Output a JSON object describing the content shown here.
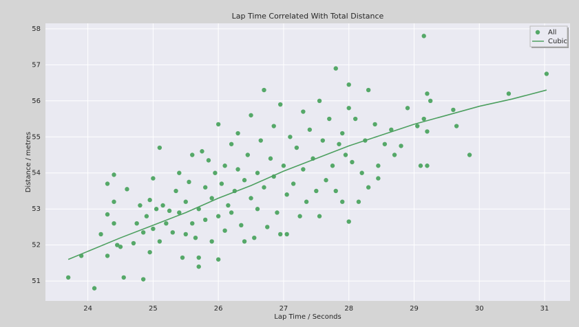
{
  "chart_data": {
    "type": "scatter",
    "title": "Lap Time Correlated With Total Distance",
    "x_label": "Lap Time / Seconds",
    "y_label": "Distance / metres",
    "xlim": [
      23.35,
      31.39
    ],
    "ylim": [
      50.45,
      58.15
    ],
    "xticks": [
      24,
      25,
      26,
      27,
      28,
      29,
      30,
      31
    ],
    "yticks": [
      51,
      52,
      53,
      54,
      55,
      56,
      57,
      58
    ],
    "grid": true,
    "legend": "upper right",
    "series": [
      {
        "name": "All",
        "color": "#55a868",
        "mode": "markers",
        "x": [
          23.7,
          23.9,
          24.1,
          24.3,
          24.55,
          24.85,
          24.2,
          24.3,
          24.4,
          24.45,
          24.5,
          24.4,
          24.3,
          24.4,
          24.6,
          24.7,
          24.75,
          24.8,
          24.85,
          24.9,
          24.95,
          24.95,
          25.0,
          25.05,
          25.0,
          25.1,
          25.1,
          25.15,
          25.2,
          25.25,
          25.3,
          25.35,
          25.4,
          25.4,
          25.45,
          25.5,
          25.5,
          25.55,
          25.6,
          25.6,
          25.65,
          25.7,
          25.7,
          25.7,
          25.75,
          25.8,
          25.8,
          25.85,
          25.9,
          25.9,
          25.95,
          26.0,
          26.0,
          26.0,
          26.05,
          26.1,
          26.1,
          26.15,
          26.2,
          26.2,
          26.25,
          26.3,
          26.3,
          26.35,
          26.4,
          26.4,
          26.45,
          26.5,
          26.5,
          26.55,
          26.6,
          26.6,
          26.65,
          26.7,
          26.7,
          26.75,
          26.8,
          26.85,
          26.85,
          26.9,
          26.95,
          26.95,
          27.0,
          27.05,
          27.05,
          27.1,
          27.15,
          27.2,
          27.25,
          27.3,
          27.3,
          27.35,
          27.4,
          27.45,
          27.5,
          27.55,
          27.55,
          27.6,
          27.65,
          27.7,
          27.75,
          27.8,
          27.8,
          27.85,
          27.9,
          27.9,
          27.95,
          28.0,
          28.0,
          28.0,
          28.05,
          28.1,
          28.15,
          28.2,
          28.25,
          28.3,
          28.3,
          28.4,
          28.45,
          28.45,
          28.55,
          28.65,
          28.7,
          28.8,
          28.9,
          29.05,
          29.1,
          29.15,
          29.15,
          29.2,
          29.2,
          29.2,
          29.25,
          29.6,
          29.65,
          29.85,
          30.45,
          31.03
        ],
        "values": [
          51.1,
          51.7,
          50.8,
          51.7,
          51.1,
          51.05,
          52.3,
          52.85,
          52.6,
          52.0,
          51.95,
          53.2,
          53.7,
          53.95,
          53.55,
          52.05,
          52.6,
          53.1,
          52.35,
          52.8,
          51.8,
          53.25,
          52.45,
          53.0,
          53.85,
          54.7,
          52.1,
          53.1,
          52.6,
          52.95,
          52.35,
          53.5,
          54.0,
          52.9,
          51.65,
          52.3,
          53.2,
          53.75,
          52.6,
          54.5,
          52.2,
          51.4,
          51.65,
          53.0,
          54.6,
          52.7,
          53.6,
          54.35,
          52.1,
          53.3,
          54.0,
          51.6,
          52.8,
          55.35,
          53.7,
          54.2,
          52.4,
          53.1,
          54.8,
          52.9,
          53.5,
          54.1,
          55.1,
          52.55,
          53.8,
          52.1,
          54.5,
          53.3,
          55.6,
          52.2,
          54.0,
          53.0,
          54.9,
          56.3,
          53.6,
          52.5,
          54.4,
          53.9,
          55.3,
          52.9,
          52.3,
          55.9,
          54.2,
          52.3,
          53.4,
          55.0,
          53.7,
          54.7,
          52.8,
          55.7,
          54.1,
          53.2,
          55.2,
          54.4,
          53.5,
          56.0,
          52.8,
          54.9,
          53.8,
          55.5,
          54.2,
          56.9,
          53.5,
          54.8,
          53.2,
          55.1,
          54.5,
          52.65,
          55.8,
          56.45,
          54.3,
          55.5,
          53.2,
          54.0,
          54.9,
          56.3,
          53.6,
          55.35,
          54.2,
          53.85,
          54.8,
          55.2,
          54.5,
          54.75,
          55.8,
          55.3,
          54.2,
          57.8,
          55.5,
          54.2,
          55.15,
          56.2,
          56.0,
          55.75,
          55.3,
          54.5,
          56.2,
          56.75
        ]
      },
      {
        "name": "Cubic",
        "color": "#4c9f5f",
        "mode": "line",
        "x": [
          23.7,
          24.5,
          25,
          25.5,
          26,
          26.5,
          27,
          27.5,
          28,
          28.5,
          29,
          29.5,
          30,
          30.5,
          31.03
        ],
        "values": [
          51.6,
          52.2,
          52.55,
          52.9,
          53.3,
          53.65,
          54.05,
          54.4,
          54.75,
          55.05,
          55.35,
          55.6,
          55.85,
          56.05,
          56.3
        ]
      }
    ]
  }
}
